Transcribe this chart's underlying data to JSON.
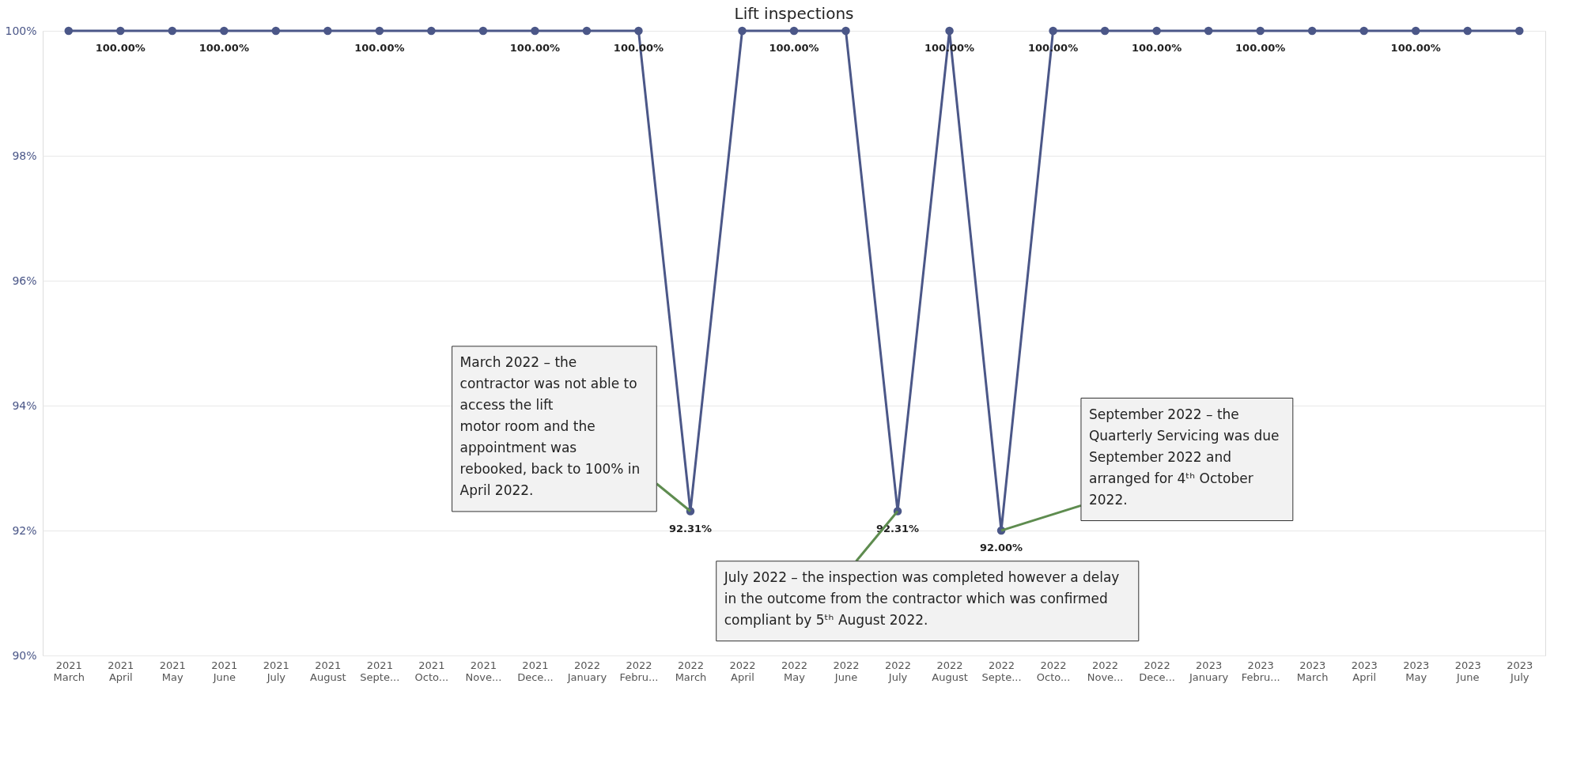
{
  "chart_data": {
    "type": "line",
    "title": "Lift inspections",
    "categories": [
      "2021\nMarch",
      "2021\nApril",
      "2021\nMay",
      "2021\nJune",
      "2021\nJuly",
      "2021\nAugust",
      "2021\nSepte...",
      "2021\nOcto...",
      "2021\nNove...",
      "2021\nDece...",
      "2022\nJanuary",
      "2022\nFebru...",
      "2022\nMarch",
      "2022\nApril",
      "2022\nMay",
      "2022\nJune",
      "2022\nJuly",
      "2022\nAugust",
      "2022\nSepte...",
      "2022\nOcto...",
      "2022\nNove...",
      "2022\nDece...",
      "2023\nJanuary",
      "2023\nFebru...",
      "2023\nMarch",
      "2023\nApril",
      "2023\nMay",
      "2023\nJune",
      "2023\nJuly"
    ],
    "values": [
      100,
      100,
      100,
      100,
      100,
      100,
      100,
      100,
      100,
      100,
      100,
      100,
      92.31,
      100,
      100,
      100,
      92.31,
      100,
      92.0,
      100,
      100,
      100,
      100,
      100,
      100,
      100,
      100,
      100,
      100
    ],
    "value_labels": [
      null,
      "100.00%",
      null,
      "100.00%",
      null,
      null,
      "100.00%",
      null,
      null,
      "100.00%",
      null,
      "100.00%",
      "92.31%",
      null,
      "100.00%",
      null,
      "92.31%",
      "100.00%",
      "92.00%",
      "100.00%",
      null,
      "100.00%",
      null,
      "100.00%",
      null,
      null,
      "100.00%",
      null,
      null
    ],
    "color": "#4b5788",
    "marker": "circle",
    "line_style": "solid",
    "ylim": [
      90,
      100
    ],
    "yticks": [
      {
        "value": 90,
        "label": "90%"
      },
      {
        "value": 92,
        "label": "92%"
      },
      {
        "value": 94,
        "label": "94%"
      },
      {
        "value": 96,
        "label": "96%"
      },
      {
        "value": 98,
        "label": "98%"
      },
      {
        "value": 100,
        "label": "100%"
      }
    ],
    "grid": "y",
    "annotations": [
      {
        "text": "March 2022 – the\ncontractor was not able to\naccess the lift\nmotor room and the\nappointment was\nrebooked, back to 100% in\nApril 2022.",
        "x": "2022\nMarch",
        "y": 92.31
      },
      {
        "text": "July 2022 – the inspection was completed however a delay\n in the outcome from the contractor which was confirmed\ncompliant by 5ᵗʰ August 2022.",
        "x": "2022\nJuly",
        "y": 92.31
      },
      {
        "text": "September 2022 – the\nQuarterly Servicing was due\nSeptember 2022 and\narranged for 4ᵗʰ October\n2022.",
        "x": "2022\nSepte...",
        "y": 92.0
      }
    ]
  }
}
